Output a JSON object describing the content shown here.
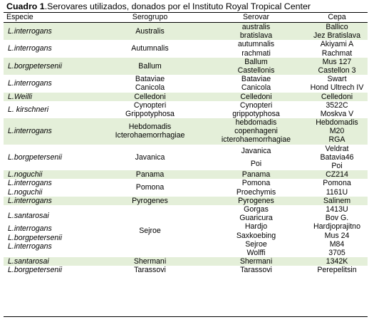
{
  "caption": {
    "number": "Cuadro 1",
    "text": ".Serovares utilizados, donados por el Instituto Royal Tropical Center"
  },
  "headers": [
    "Especie",
    "Serogrupo",
    "Serovar",
    "Cepa"
  ],
  "rows": [
    {
      "shade": true,
      "especie": [
        [
          "L.interrogans"
        ]
      ],
      "serogrupo": [
        [
          "Australis"
        ]
      ],
      "serovar": [
        [
          "australis",
          "bratislava"
        ]
      ],
      "cepa": [
        [
          "Ballico",
          "Jez Bratislava"
        ]
      ]
    },
    {
      "shade": false,
      "especie": [
        [
          "L.interrogans"
        ]
      ],
      "serogrupo": [
        [
          "Autumnalis"
        ]
      ],
      "serovar": [
        [
          "autumnalis",
          "rachmati"
        ]
      ],
      "cepa": [
        [
          "Akiyami A",
          "Rachmat"
        ]
      ]
    },
    {
      "shade": true,
      "especie": [
        [
          "L.borgpetersenii"
        ]
      ],
      "serogrupo": [
        [
          "Ballum"
        ]
      ],
      "serovar": [
        [
          "Ballum",
          "Castellonis"
        ]
      ],
      "cepa": [
        [
          "Mus 127",
          "Castellon 3"
        ]
      ]
    },
    {
      "shade": false,
      "especie": [
        [
          "L.interrogans"
        ]
      ],
      "serogrupo": [
        [
          "Bataviae",
          "Canicola"
        ]
      ],
      "serovar": [
        [
          "Bataviae",
          "Canicola"
        ]
      ],
      "cepa": [
        [
          "Swart",
          "Hond Ultrech IV"
        ]
      ]
    },
    {
      "shade": true,
      "especie": [
        [
          "L.Weilli"
        ]
      ],
      "serogrupo": [
        [
          "Celledoni"
        ]
      ],
      "serovar": [
        [
          "Celledoni"
        ]
      ],
      "cepa": [
        [
          "Celledoni"
        ]
      ]
    },
    {
      "shade": false,
      "especie": [
        [
          "L. kirschneri"
        ]
      ],
      "serogrupo": [
        [
          "Cynopteri",
          "Grippotyphosa"
        ]
      ],
      "serovar": [
        [
          "Cynopteri",
          "grippotyphosa"
        ]
      ],
      "cepa": [
        [
          "3522C",
          "Moskva V"
        ]
      ]
    },
    {
      "shade": true,
      "especie": [
        [
          "L.interrogans"
        ]
      ],
      "serogrupo": [
        [
          "Hebdomadis",
          "Icterohaemorrhagiae"
        ]
      ],
      "serovar": [
        [
          "hebdomadis",
          "copenhageni",
          "icterohaemorrhagiae"
        ]
      ],
      "cepa": [
        [
          "Hebdomadis",
          "M20",
          "RGA"
        ]
      ]
    },
    {
      "shade": false,
      "especie": [
        [
          "L.borgpetersenii"
        ]
      ],
      "serogrupo": [
        [
          "Javanica"
        ]
      ],
      "serovar": [
        [
          "Javanica"
        ],
        [
          "Poi"
        ]
      ],
      "cepa": [
        [
          "Veldrat",
          "Batavia46",
          "Poi"
        ]
      ]
    },
    {
      "shade": true,
      "especie": [
        [
          "L.noguchii"
        ]
      ],
      "serogrupo": [
        [
          "Panama"
        ]
      ],
      "serovar": [
        [
          "Panama"
        ]
      ],
      "cepa": [
        [
          "CZ214"
        ]
      ]
    },
    {
      "shade": false,
      "especie": [
        [
          "L.interrogans",
          "L.noguchii"
        ]
      ],
      "serogrupo": [
        [
          "Pomona"
        ]
      ],
      "serovar": [
        [
          "Pomona",
          "Proechymis"
        ]
      ],
      "cepa": [
        [
          "Pomona",
          "1161U"
        ]
      ]
    },
    {
      "shade": true,
      "especie": [
        [
          "L.interrogans"
        ]
      ],
      "serogrupo": [
        [
          "Pyrogenes"
        ]
      ],
      "serovar": [
        [
          "Pyrogenes"
        ]
      ],
      "cepa": [
        [
          "Salinem"
        ]
      ]
    },
    {
      "shade": false,
      "especie": [
        [
          "L.santarosai"
        ],
        [
          "L.interrogans",
          "L.borgpetersenii",
          "L.interrogans"
        ]
      ],
      "serogrupo": [
        [
          "Sejroe"
        ]
      ],
      "serovar": [
        [
          "Gorgas",
          "Guaricura",
          "Hardjo",
          "Saxkoebing",
          "Sejroe",
          "Wolffi"
        ]
      ],
      "cepa": [
        [
          "1413U",
          "Bov G.",
          "Hardjoprajitno",
          "Mus 24",
          "M84",
          "3705"
        ]
      ]
    },
    {
      "shade": true,
      "especie": [
        [
          "L.santarosai"
        ]
      ],
      "serogrupo": [
        [
          "Shermani"
        ]
      ],
      "serovar": [
        [
          "Shermani"
        ]
      ],
      "cepa": [
        [
          "1342K"
        ]
      ]
    },
    {
      "shade": false,
      "especie": [
        [
          "L.borgpetersenii"
        ]
      ],
      "serogrupo": [
        [
          "Tarassovi"
        ]
      ],
      "serovar": [
        [
          "Tarassovi"
        ]
      ],
      "cepa": [
        [
          "Perepelitsin"
        ]
      ]
    }
  ]
}
